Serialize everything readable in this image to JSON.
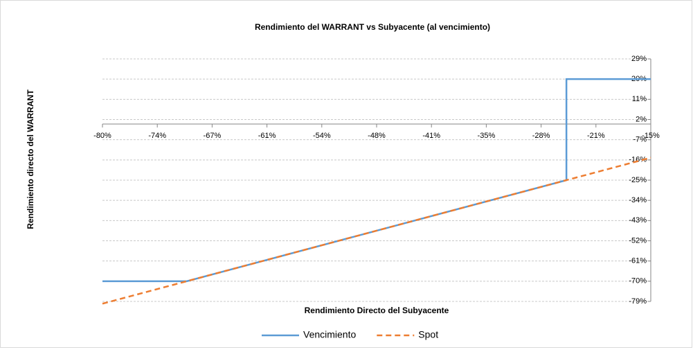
{
  "chart_data": {
    "type": "line",
    "title": "Rendimiento del WARRANT vs Subyacente (al vencimiento)",
    "x_label": "Rendimiento Directo del Subyacente",
    "y_label": "Rendimiento directo del WARRANT",
    "series": [
      {
        "name": "Vencimiento",
        "color": "#5b9bd5",
        "x": [
          -80,
          -70,
          -25,
          -25,
          -15
        ],
        "values": [
          -70,
          -70,
          -25,
          20,
          20
        ]
      },
      {
        "name": "Spot",
        "color": "#ed7d31",
        "dashed": true,
        "x": [
          -80,
          -15
        ],
        "values": [
          -80,
          -15
        ]
      }
    ],
    "xlim": [
      -80,
      -15
    ],
    "xticks": [
      {
        "value": -80,
        "label": "-80%"
      },
      {
        "value": -73.5,
        "label": "-74%"
      },
      {
        "value": -67,
        "label": "-67%"
      },
      {
        "value": -60.5,
        "label": "-61%"
      },
      {
        "value": -54,
        "label": "-54%"
      },
      {
        "value": -47.5,
        "label": "-48%"
      },
      {
        "value": -41,
        "label": "-41%"
      },
      {
        "value": -34.5,
        "label": "-35%"
      },
      {
        "value": -28,
        "label": "-28%"
      },
      {
        "value": -21.5,
        "label": "-21%"
      },
      {
        "value": -15,
        "label": "-15%"
      }
    ],
    "ylim": [
      -79,
      29
    ],
    "yticks": [
      {
        "value": 29,
        "label": "29%"
      },
      {
        "value": 20,
        "label": "20%"
      },
      {
        "value": 11,
        "label": "11%"
      },
      {
        "value": 2,
        "label": "2%"
      },
      {
        "value": -7,
        "label": "-7%"
      },
      {
        "value": -16,
        "label": "-16%"
      },
      {
        "value": -25,
        "label": "-25%"
      },
      {
        "value": -34,
        "label": "-34%"
      },
      {
        "value": -43,
        "label": "-43%"
      },
      {
        "value": -52,
        "label": "-52%"
      },
      {
        "value": -61,
        "label": "-61%"
      },
      {
        "value": -70,
        "label": "-70%"
      },
      {
        "value": -79,
        "label": "-79%"
      }
    ],
    "grid": true,
    "legend": "bottom"
  }
}
